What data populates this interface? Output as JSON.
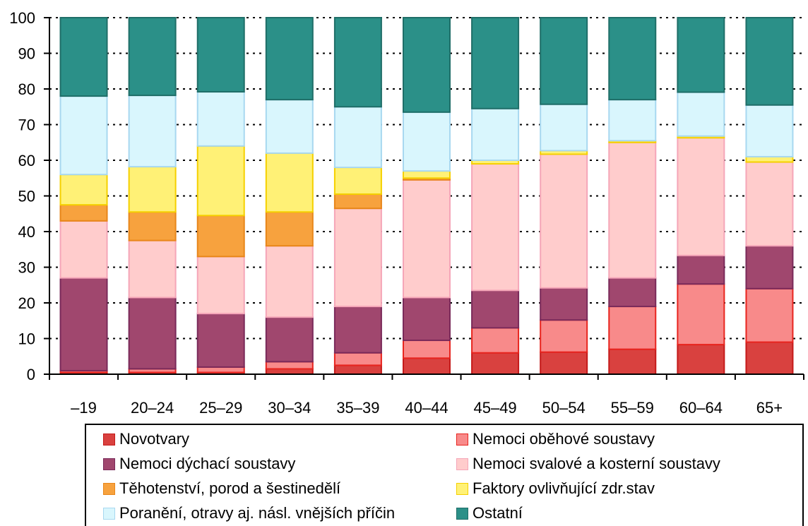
{
  "chart_data": {
    "type": "bar",
    "stacked": true,
    "title": "",
    "xlabel": "",
    "ylabel": "",
    "ylim": [
      0,
      100
    ],
    "yticks": [
      "0",
      "10",
      "20",
      "30",
      "40",
      "50",
      "60",
      "70",
      "80",
      "90",
      "100"
    ],
    "grid": true,
    "legend_position": "bottom",
    "categories": [
      "–19",
      "20–24",
      "25–29",
      "30–34",
      "35–39",
      "40–44",
      "45–49",
      "50–54",
      "55–59",
      "60–64",
      "65+"
    ],
    "series": [
      {
        "name": "Novotvary",
        "color": "#d9413f",
        "values": [
          0.5,
          0.5,
          0.5,
          1.5,
          2.5,
          4.5,
          6.0,
          6.2,
          7.0,
          8.3,
          9.0
        ]
      },
      {
        "name": "Nemoci oběhové soustavy",
        "color": "#f88a8a",
        "values": [
          0.5,
          1.0,
          1.5,
          2.0,
          3.5,
          5.0,
          7.0,
          9.0,
          12.0,
          17.0,
          15.0
        ]
      },
      {
        "name": "Nemoci dýchací soustavy",
        "color": "#a0476e",
        "values": [
          26.0,
          20.0,
          15.0,
          12.5,
          13.0,
          12.0,
          10.5,
          9.0,
          8.0,
          8.0,
          12.0
        ]
      },
      {
        "name": "Nemoci svalové a kosterní soustavy",
        "color": "#ffcccc",
        "values": [
          16.0,
          16.0,
          16.0,
          20.0,
          27.5,
          33.0,
          35.5,
          37.5,
          38.0,
          33.0,
          23.5
        ]
      },
      {
        "name": "Těhotenství, porod a šestinedělí",
        "color": "#f7a23e",
        "values": [
          4.5,
          8.0,
          11.5,
          9.5,
          4.0,
          0.5,
          0.0,
          0.0,
          0.0,
          0.0,
          0.0
        ]
      },
      {
        "name": "Faktory ovlivňující zdr.stav",
        "color": "#fff176",
        "values": [
          8.5,
          12.7,
          19.5,
          16.5,
          7.5,
          2.0,
          1.0,
          1.0,
          0.5,
          0.5,
          1.5
        ]
      },
      {
        "name": "Poranění, otravy aj. násl. vnějších příčin",
        "color": "#d9f6fd",
        "values": [
          22.0,
          20.0,
          15.2,
          15.0,
          17.0,
          16.5,
          14.5,
          13.0,
          11.5,
          12.3,
          14.5
        ]
      },
      {
        "name": "Ostatní",
        "color": "#2b9088",
        "values": [
          22.0,
          21.8,
          20.8,
          23.0,
          25.0,
          26.5,
          25.5,
          24.3,
          23.0,
          20.9,
          24.5
        ]
      }
    ],
    "series_border_colors": [
      "#c41a1a",
      "#e8251f",
      "#7a2a5a",
      "#f5a6b8",
      "#e8861a",
      "#f5d000",
      "#a8d8f0",
      "#1f6e68"
    ]
  }
}
